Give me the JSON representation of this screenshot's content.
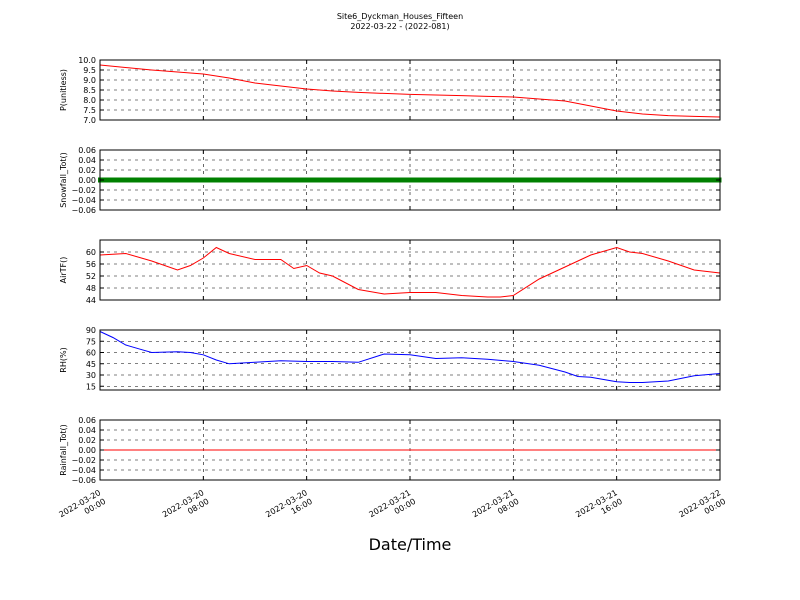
{
  "chart_data": {
    "type": "line",
    "title": "Site6_Dyckman_Houses_Fifteen",
    "subtitle": "2022-03-22 - (2022-081)",
    "xlabel": "Date/Time",
    "xlim": [
      "2022-03-20 00:00",
      "2022-03-22 00:00"
    ],
    "x_ticks": [
      "2022-03-20 00:00",
      "2022-03-20 08:00",
      "2022-03-20 16:00",
      "2022-03-21 00:00",
      "2022-03-21 08:00",
      "2022-03-21 16:00",
      "2022-03-22 00:00"
    ],
    "x_tick_labels": [
      [
        "2022-03-20",
        "00:00"
      ],
      [
        "2022-03-20",
        "08:00"
      ],
      [
        "2022-03-20",
        "16:00"
      ],
      [
        "2022-03-21",
        "00:00"
      ],
      [
        "2022-03-21",
        "08:00"
      ],
      [
        "2022-03-21",
        "16:00"
      ],
      [
        "2022-03-22",
        "00:00"
      ]
    ],
    "grid": true,
    "panels": [
      {
        "ylabel": "P(unitless)",
        "ylim": [
          7.0,
          10.0
        ],
        "y_ticks": [
          7.0,
          7.5,
          8.0,
          8.5,
          9.0,
          9.5,
          10.0
        ],
        "y_tick_labels": [
          "7.0",
          "7.5",
          "8.0",
          "8.5",
          "9.0",
          "9.5",
          "10.0"
        ],
        "color": "#ff0000",
        "line_style": "line",
        "x": [
          "2022-03-20 00:00",
          "2022-03-20 04:00",
          "2022-03-20 06:00",
          "2022-03-20 08:00",
          "2022-03-20 10:00",
          "2022-03-20 12:00",
          "2022-03-20 14:00",
          "2022-03-20 16:00",
          "2022-03-20 18:00",
          "2022-03-20 20:00",
          "2022-03-20 22:00",
          "2022-03-21 00:00",
          "2022-03-21 02:00",
          "2022-03-21 04:00",
          "2022-03-21 06:00",
          "2022-03-21 08:00",
          "2022-03-21 10:00",
          "2022-03-21 12:00",
          "2022-03-21 14:00",
          "2022-03-21 16:00",
          "2022-03-21 18:00",
          "2022-03-21 20:00",
          "2022-03-21 22:00",
          "2022-03-22 00:00"
        ],
        "y": [
          9.75,
          9.5,
          9.4,
          9.3,
          9.1,
          8.85,
          8.7,
          8.55,
          8.45,
          8.38,
          8.33,
          8.28,
          8.25,
          8.22,
          8.18,
          8.15,
          8.05,
          7.95,
          7.7,
          7.45,
          7.3,
          7.22,
          7.18,
          7.15
        ]
      },
      {
        "ylabel": "Snowfall_Tot()",
        "ylim": [
          -0.06,
          0.06
        ],
        "y_ticks": [
          -0.06,
          -0.04,
          -0.02,
          0.0,
          0.02,
          0.04,
          0.06
        ],
        "y_tick_labels": [
          "−0.06",
          "−0.04",
          "−0.02",
          "0.00",
          "0.02",
          "0.04",
          "0.06"
        ],
        "color": "#008000",
        "line_style": "markers",
        "x": [
          "2022-03-20 00:00",
          "2022-03-22 00:00"
        ],
        "y": [
          0.0,
          0.0
        ]
      },
      {
        "ylabel": "AirTF()",
        "ylim": [
          44,
          64
        ],
        "y_ticks": [
          44,
          48,
          52,
          56,
          60
        ],
        "y_tick_labels": [
          "44",
          "48",
          "52",
          "56",
          "60"
        ],
        "color": "#ff0000",
        "line_style": "line",
        "x": [
          "2022-03-20 00:00",
          "2022-03-20 02:00",
          "2022-03-20 04:00",
          "2022-03-20 06:00",
          "2022-03-20 07:00",
          "2022-03-20 08:00",
          "2022-03-20 09:00",
          "2022-03-20 10:00",
          "2022-03-20 12:00",
          "2022-03-20 14:00",
          "2022-03-20 15:00",
          "2022-03-20 16:00",
          "2022-03-20 17:00",
          "2022-03-20 18:00",
          "2022-03-20 20:00",
          "2022-03-20 22:00",
          "2022-03-21 00:00",
          "2022-03-21 02:00",
          "2022-03-21 04:00",
          "2022-03-21 06:00",
          "2022-03-21 07:00",
          "2022-03-21 08:00",
          "2022-03-21 10:00",
          "2022-03-21 12:00",
          "2022-03-21 13:00",
          "2022-03-21 14:00",
          "2022-03-21 16:00",
          "2022-03-21 17:00",
          "2022-03-21 18:00",
          "2022-03-21 20:00",
          "2022-03-21 22:00",
          "2022-03-22 00:00"
        ],
        "y": [
          59,
          59.5,
          57,
          54,
          55.5,
          58,
          61.5,
          59.5,
          57.5,
          57.5,
          54.5,
          55.5,
          53,
          52,
          47.5,
          46,
          46.5,
          46.5,
          45.5,
          45,
          45,
          45.5,
          51,
          55,
          57,
          59,
          61.5,
          60,
          59.5,
          57,
          54,
          53
        ]
      },
      {
        "ylabel": "RH(%)",
        "ylim": [
          10,
          90
        ],
        "y_ticks": [
          15,
          30,
          45,
          60,
          75,
          90
        ],
        "y_tick_labels": [
          "15",
          "30",
          "45",
          "60",
          "75",
          "90"
        ],
        "color": "#0000ff",
        "line_style": "line",
        "x": [
          "2022-03-20 00:00",
          "2022-03-20 01:00",
          "2022-03-20 02:00",
          "2022-03-20 03:00",
          "2022-03-20 04:00",
          "2022-03-20 06:00",
          "2022-03-20 07:00",
          "2022-03-20 08:00",
          "2022-03-20 09:00",
          "2022-03-20 10:00",
          "2022-03-20 12:00",
          "2022-03-20 14:00",
          "2022-03-20 16:00",
          "2022-03-20 18:00",
          "2022-03-20 20:00",
          "2022-03-20 22:00",
          "2022-03-21 00:00",
          "2022-03-21 02:00",
          "2022-03-21 04:00",
          "2022-03-21 06:00",
          "2022-03-21 08:00",
          "2022-03-21 10:00",
          "2022-03-21 12:00",
          "2022-03-21 13:00",
          "2022-03-21 14:00",
          "2022-03-21 16:00",
          "2022-03-21 17:00",
          "2022-03-21 18:00",
          "2022-03-21 20:00",
          "2022-03-21 22:00",
          "2022-03-22 00:00"
        ],
        "y": [
          88,
          80,
          70,
          65,
          60,
          61,
          60,
          57,
          50,
          45,
          47,
          49,
          48,
          48,
          47,
          58,
          57,
          52,
          53,
          51,
          48,
          43,
          34,
          28,
          27,
          21,
          20,
          20,
          22,
          29,
          32
        ]
      },
      {
        "ylabel": "Rainfall_Tot()",
        "ylim": [
          -0.06,
          0.06
        ],
        "y_ticks": [
          -0.06,
          -0.04,
          -0.02,
          0.0,
          0.02,
          0.04,
          0.06
        ],
        "y_tick_labels": [
          "−0.06",
          "−0.04",
          "−0.02",
          "0.00",
          "0.02",
          "0.04",
          "0.06"
        ],
        "color": "#ff0000",
        "line_style": "line",
        "x": [
          "2022-03-20 00:00",
          "2022-03-22 00:00"
        ],
        "y": [
          0.0,
          0.0
        ]
      }
    ]
  }
}
